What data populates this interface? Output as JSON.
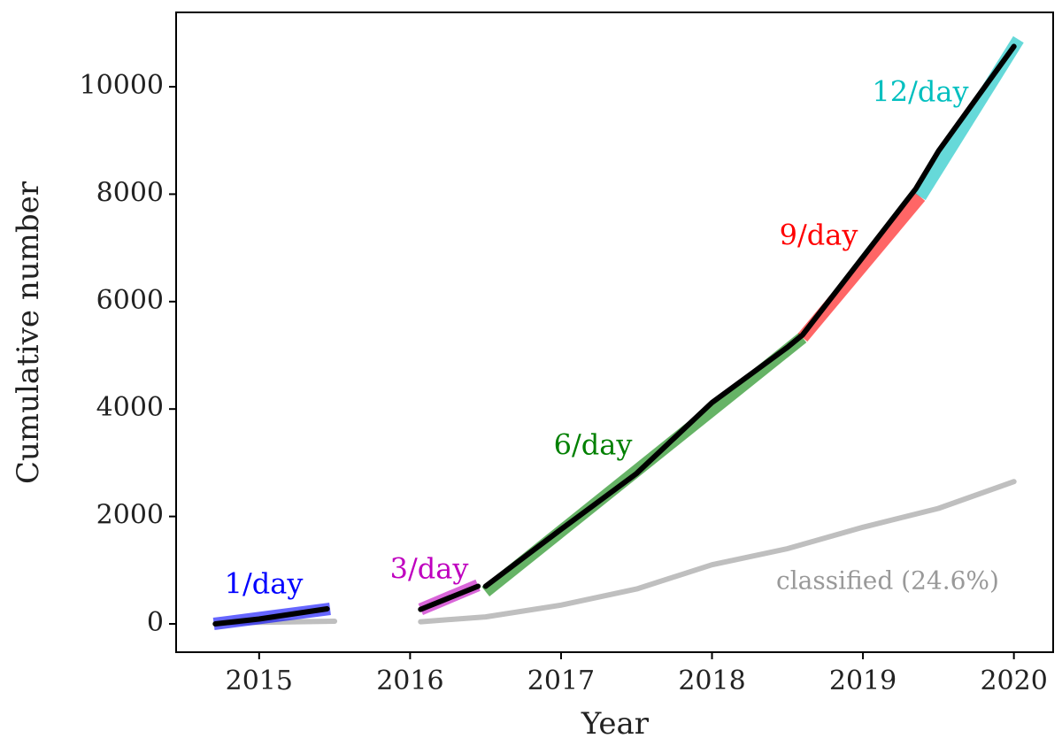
{
  "chart_data": {
    "type": "line",
    "xlabel": "Year",
    "ylabel": "Cumulative number",
    "xlim": [
      2014.45,
      2020.26
    ],
    "ylim": [
      -527,
      11384
    ],
    "xticks": [
      2015,
      2016,
      2017,
      2018,
      2019,
      2020
    ],
    "yticks": [
      0,
      2000,
      4000,
      6000,
      8000,
      10000
    ],
    "grid": false,
    "series": [
      {
        "color": "#000000",
        "x": [
          2014.71,
          2015.0,
          2015.45,
          null,
          2016.07,
          2016.45,
          null,
          2016.5,
          2017.0,
          2017.5,
          2018.0,
          2018.5,
          2018.6,
          2019.0,
          2019.35,
          2019.5,
          2020.0
        ],
        "values": [
          0,
          90,
          280,
          null,
          270,
          700,
          null,
          700,
          1760,
          2800,
          4120,
          5150,
          5380,
          6830,
          8100,
          8800,
          10750
        ]
      },
      {
        "name": "classified (24.6%)",
        "color": "#bfbfbf",
        "x": [
          2014.8,
          2015.5,
          null,
          2016.07,
          2016.45,
          2016.5,
          2017.0,
          2017.5,
          2018.0,
          2018.5,
          2019.0,
          2019.5,
          2020.0
        ],
        "values": [
          20,
          50,
          null,
          40,
          120,
          130,
          350,
          650,
          1100,
          1400,
          1800,
          2150,
          2650
        ]
      },
      {
        "name": "1/day",
        "color": "#0000ff",
        "x": [
          2014.7,
          2015.47
        ],
        "values": [
          0,
          280
        ]
      },
      {
        "name": "3/day",
        "color": "#bf00bf",
        "x": [
          2016.07,
          2016.45
        ],
        "values": [
          270,
          720
        ]
      },
      {
        "name": "6/day",
        "color": "#008000",
        "x": [
          2016.5,
          2018.6
        ],
        "values": [
          600,
          5330
        ]
      },
      {
        "name": "9/day",
        "color": "#ff0000",
        "x": [
          2018.6,
          2019.38
        ],
        "values": [
          5330,
          7950
        ]
      },
      {
        "name": "12/day",
        "color": "#00bfbf",
        "x": [
          2019.38,
          2020.03
        ],
        "values": [
          7950,
          10880
        ]
      }
    ]
  }
}
